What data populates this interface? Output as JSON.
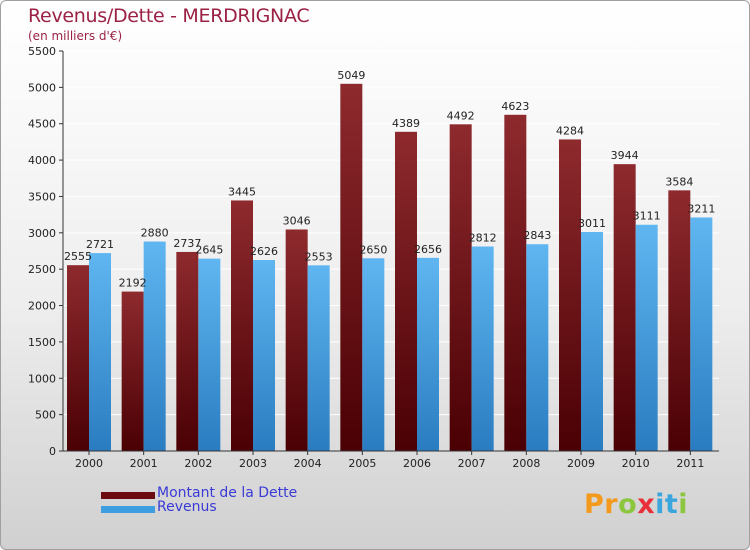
{
  "colors": {
    "dette": "#7a1418",
    "dette_light": "#8e2a2e",
    "revenus": "#3f9ee0",
    "revenus_light": "#5fb6f0",
    "title": "#9b2244",
    "legend_text": "#3a3ad6",
    "grid": "#ffffff",
    "axis_text": "#222222"
  },
  "chart_data": {
    "type": "bar",
    "title": "Revenus/Dette - MERDRIGNAC",
    "subtitle": "(en milliers d'€)",
    "categories": [
      "2000",
      "2001",
      "2002",
      "2003",
      "2004",
      "2005",
      "2006",
      "2007",
      "2008",
      "2009",
      "2010",
      "2011"
    ],
    "series": [
      {
        "name": "Montant de la Dette",
        "values": [
          2555,
          2192,
          2737,
          3445,
          3046,
          5049,
          4389,
          4492,
          4623,
          4284,
          3944,
          3584
        ]
      },
      {
        "name": "Revenus",
        "values": [
          2721,
          2880,
          2645,
          2626,
          2553,
          2650,
          2656,
          2812,
          2843,
          3011,
          3111,
          3211
        ]
      }
    ],
    "ylim": [
      0,
      5500
    ],
    "yticks": [
      0,
      500,
      1000,
      1500,
      2000,
      2500,
      3000,
      3500,
      4000,
      4500,
      5000,
      5500
    ],
    "grid": true,
    "legend_position": "bottom-left"
  },
  "logo": {
    "letters": [
      "P",
      "r",
      "o",
      "x",
      "i",
      "t",
      "i"
    ],
    "colors": [
      "#f39a1c",
      "#f39a1c",
      "#8cc63f",
      "#e8303a",
      "#3aa6dd",
      "#3aa6dd",
      "#8cc63f"
    ]
  }
}
